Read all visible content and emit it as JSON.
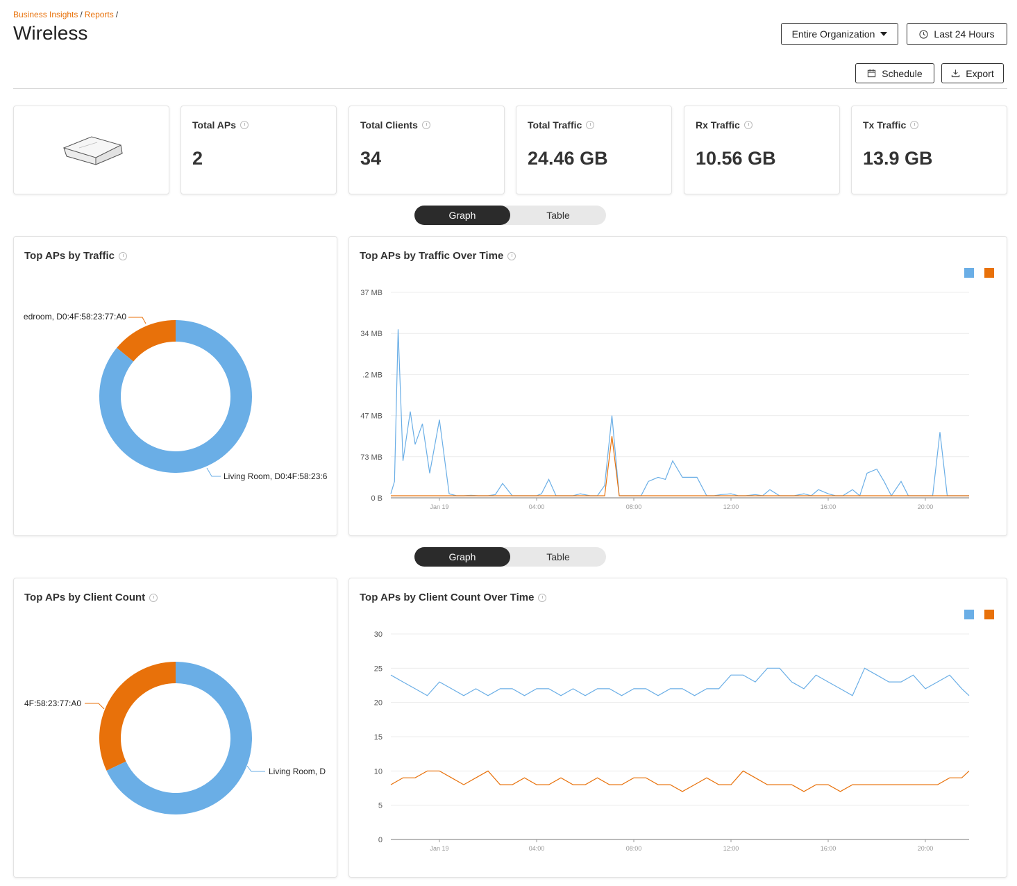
{
  "breadcrumb": {
    "item1": "Business Insights",
    "item2": "Reports",
    "separator": "/"
  },
  "title": "Wireless",
  "controls": {
    "org": "Entire Organization",
    "time": "Last 24 Hours",
    "schedule": "Schedule",
    "export": "Export"
  },
  "stats": [
    {
      "label": "Total APs",
      "value": "2"
    },
    {
      "label": "Total Clients",
      "value": "34"
    },
    {
      "label": "Total Traffic",
      "value": "24.46 GB"
    },
    {
      "label": "Rx Traffic",
      "value": "10.56 GB"
    },
    {
      "label": "Tx Traffic",
      "value": "13.9 GB"
    }
  ],
  "toggle": {
    "graph": "Graph",
    "table": "Table"
  },
  "colors": {
    "living_room": "#6aaee6",
    "bedroom": "#e8710a"
  },
  "traffic_section": {
    "donut_title": "Top APs by Traffic",
    "line_title": "Top APs by Traffic Over Time"
  },
  "client_section": {
    "donut_title": "Top APs by Client Count",
    "line_title": "Top APs by Client Count Over Time"
  },
  "chart_data": [
    {
      "type": "pie",
      "title": "Top APs by Traffic",
      "donut": true,
      "labels": [
        "edroom, D0:4F:58:23:77:A0",
        "Living Room, D0:4F:58:23:6"
      ],
      "values": [
        14,
        86
      ]
    },
    {
      "type": "line",
      "title": "Top APs by Traffic Over Time",
      "y_tick_labels": [
        "0 B",
        "73 MB",
        "47 MB",
        ".2 MB",
        "34 MB",
        "37 MB"
      ],
      "x_tick_labels": [
        "Jan 19",
        "04:00",
        "08:00",
        "12:00",
        "16:00",
        "20:00"
      ],
      "ylim": [
        0,
        5
      ],
      "grid": true,
      "legend": "top-right",
      "x": [
        0,
        0.15,
        0.3,
        0.5,
        0.8,
        1.0,
        1.3,
        1.6,
        2.0,
        2.4,
        2.7,
        3.0,
        3.3,
        3.6,
        4.0,
        4.3,
        4.6,
        5.0,
        5.3,
        5.6,
        6.0,
        6.2,
        6.5,
        6.8,
        7.2,
        7.5,
        7.8,
        8.2,
        8.5,
        8.8,
        9.1,
        9.4,
        9.7,
        10.0,
        10.3,
        10.6,
        11.0,
        11.3,
        11.6,
        12.0,
        12.3,
        12.6,
        13.0,
        13.3,
        13.6,
        14.0,
        14.3,
        14.6,
        15.0,
        15.3,
        15.6,
        16.0,
        16.3,
        16.6,
        17.0,
        17.3,
        17.6,
        18.0,
        18.3,
        18.6,
        19.0,
        19.3,
        19.6,
        20.0,
        20.3,
        20.6,
        21.0,
        21.3,
        21.6,
        22.0,
        22.3,
        22.6,
        22.9,
        23.2,
        23.5,
        23.8
      ],
      "series": [
        {
          "values": [
            0.1,
            0.4,
            4.1,
            0.9,
            2.1,
            1.3,
            1.8,
            0.6,
            1.9,
            0.1,
            0.05,
            0.05,
            0.06,
            0.05,
            0.05,
            0.08,
            0.35,
            0.05,
            0.05,
            0.05,
            0.05,
            0.1,
            0.45,
            0.05,
            0.05,
            0.05,
            0.1,
            0.05,
            0.05,
            0.3,
            2.0,
            0.05,
            0.05,
            0.05,
            0.05,
            0.4,
            0.5,
            0.45,
            0.9,
            0.5,
            0.5,
            0.5,
            0.05,
            0.05,
            0.08,
            0.1,
            0.05,
            0.05,
            0.08,
            0.05,
            0.2,
            0.05,
            0.05,
            0.05,
            0.1,
            0.05,
            0.2,
            0.1,
            0.05,
            0.05,
            0.2,
            0.05,
            0.6,
            0.7,
            0.4,
            0.05,
            0.4,
            0.05,
            0.05,
            0.05,
            0.05,
            1.6,
            0.05,
            0.05,
            0.05,
            0.05
          ]
        },
        {
          "values": [
            0.05,
            0.05,
            0.05,
            0.05,
            0.05,
            0.05,
            0.05,
            0.05,
            0.05,
            0.05,
            0.05,
            0.05,
            0.05,
            0.05,
            0.05,
            0.05,
            0.05,
            0.05,
            0.05,
            0.05,
            0.05,
            0.05,
            0.05,
            0.05,
            0.05,
            0.05,
            0.05,
            0.05,
            0.05,
            0.05,
            1.5,
            0.05,
            0.05,
            0.05,
            0.05,
            0.05,
            0.05,
            0.05,
            0.05,
            0.05,
            0.05,
            0.05,
            0.05,
            0.05,
            0.05,
            0.05,
            0.05,
            0.05,
            0.05,
            0.05,
            0.05,
            0.05,
            0.05,
            0.05,
            0.05,
            0.05,
            0.05,
            0.05,
            0.05,
            0.05,
            0.05,
            0.05,
            0.05,
            0.05,
            0.05,
            0.05,
            0.05,
            0.05,
            0.05,
            0.05,
            0.05,
            0.05,
            0.05,
            0.05,
            0.05,
            0.05
          ]
        }
      ]
    },
    {
      "type": "pie",
      "title": "Top APs by Client Count",
      "donut": true,
      "labels": [
        "4F:58:23:77:A0",
        "Living Room, D"
      ],
      "values": [
        32,
        68
      ]
    },
    {
      "type": "line",
      "title": "Top APs by Client Count Over Time",
      "y_tick_labels": [
        "0",
        "5",
        "10",
        "15",
        "20",
        "25",
        "30"
      ],
      "x_tick_labels": [
        "Jan 19",
        "04:00",
        "08:00",
        "12:00",
        "16:00",
        "20:00"
      ],
      "ylim": [
        0,
        30
      ],
      "grid": true,
      "legend": "top-right",
      "x": [
        0,
        0.5,
        1.0,
        1.5,
        2.0,
        2.5,
        3.0,
        3.5,
        4.0,
        4.5,
        5.0,
        5.5,
        6.0,
        6.5,
        7.0,
        7.5,
        8.0,
        8.5,
        9.0,
        9.5,
        10.0,
        10.5,
        11.0,
        11.5,
        12.0,
        12.5,
        13.0,
        13.5,
        14.0,
        14.5,
        15.0,
        15.5,
        16.0,
        16.5,
        17.0,
        17.5,
        18.0,
        18.5,
        19.0,
        19.5,
        20.0,
        20.5,
        21.0,
        21.5,
        22.0,
        22.5,
        23.0,
        23.5,
        23.8
      ],
      "series": [
        {
          "values": [
            24,
            23,
            22,
            21,
            23,
            22,
            21,
            22,
            21,
            22,
            22,
            21,
            22,
            22,
            21,
            22,
            21,
            22,
            22,
            21,
            22,
            22,
            21,
            22,
            22,
            21,
            22,
            22,
            24,
            24,
            23,
            25,
            25,
            23,
            22,
            24,
            23,
            22,
            21,
            25,
            24,
            23,
            23,
            24,
            22,
            23,
            24,
            22,
            21
          ]
        },
        {
          "values": [
            8,
            9,
            9,
            10,
            10,
            9,
            8,
            9,
            10,
            8,
            8,
            9,
            8,
            8,
            9,
            8,
            8,
            9,
            8,
            8,
            9,
            9,
            8,
            8,
            7,
            8,
            9,
            8,
            8,
            10,
            9,
            8,
            8,
            8,
            7,
            8,
            8,
            7,
            8,
            8,
            8,
            8,
            8,
            8,
            8,
            8,
            9,
            9,
            10
          ]
        }
      ]
    }
  ]
}
